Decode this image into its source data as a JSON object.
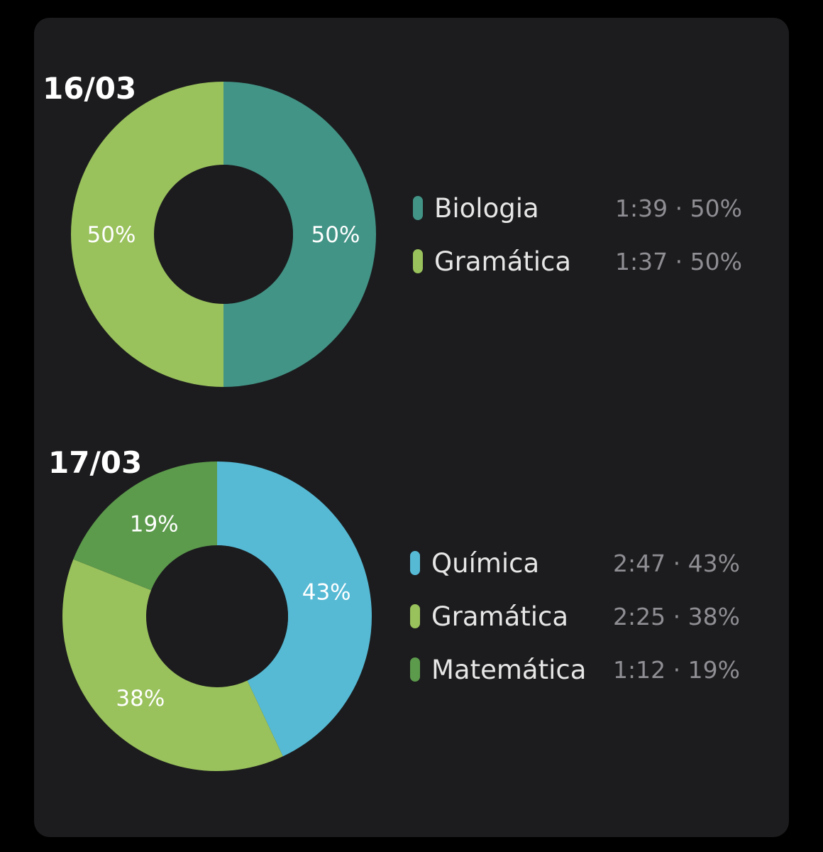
{
  "background": "#1c1c1e",
  "chart_data": [
    {
      "type": "pie",
      "title": "16/03",
      "donut": true,
      "slices": [
        {
          "name": "Biologia",
          "value": 50,
          "time": "1:39",
          "label": "50%",
          "legend_value": "1:39 · 50%",
          "color": "#429486"
        },
        {
          "name": "Gramática",
          "value": 50,
          "time": "1:37",
          "label": "50%",
          "legend_value": "1:37 · 50%",
          "color": "#99c15c"
        }
      ]
    },
    {
      "type": "pie",
      "title": "17/03",
      "donut": true,
      "slices": [
        {
          "name": "Química",
          "value": 43,
          "time": "2:47",
          "label": "43%",
          "legend_value": "2:47 · 43%",
          "color": "#56bad5"
        },
        {
          "name": "Gramática",
          "value": 38,
          "time": "2:25",
          "label": "38%",
          "legend_value": "2:25 · 38%",
          "color": "#99c15c"
        },
        {
          "name": "Matemática",
          "value": 19,
          "time": "1:12",
          "label": "19%",
          "legend_value": "1:12 · 19%",
          "color": "#5c9a4c"
        }
      ]
    }
  ]
}
